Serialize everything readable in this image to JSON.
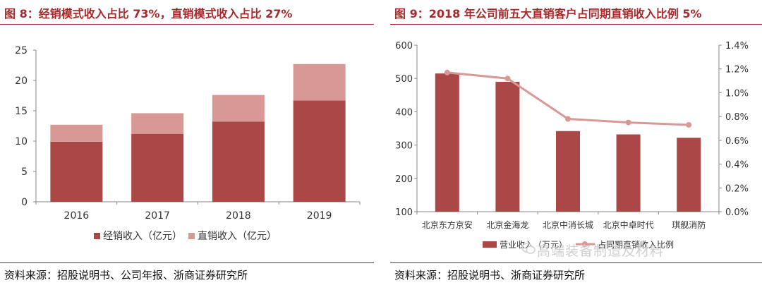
{
  "left": {
    "title": "图 8：经销模式收入占比 73%，直销模式收入占比 27%",
    "source": "资料来源：招股说明书、公司年报、浙商证券研究所"
  },
  "right": {
    "title": "图 9：2018 年公司前五大直销客户占同期直销收入比例 5%",
    "source": "资料来源：招股说明书、浙商证券研究所",
    "watermark": "高端装备制造及材料"
  },
  "chart_data": [
    {
      "type": "bar",
      "stacked": true,
      "categories": [
        "2016",
        "2017",
        "2018",
        "2019"
      ],
      "series": [
        {
          "name": "经销收入（亿元）",
          "values": [
            9.9,
            11.2,
            13.2,
            16.7
          ],
          "color": "#a94846"
        },
        {
          "name": "直销收入（亿元）",
          "values": [
            2.8,
            3.4,
            4.4,
            6.0
          ],
          "color": "#d79896"
        }
      ],
      "ylim": [
        0,
        25
      ],
      "yticks": [
        0,
        5,
        10,
        15,
        20,
        25
      ],
      "legend": "bottom",
      "grid": false
    },
    {
      "type": "bar+line",
      "categories": [
        "北京东方京安",
        "北京金海龙",
        "北京中消长城",
        "北京中卓时代",
        "琪舰消防"
      ],
      "series": [
        {
          "name": "营业收入（万元）",
          "type": "bar",
          "axis": "left",
          "values": [
            515,
            490,
            342,
            332,
            322
          ],
          "color": "#a94846"
        },
        {
          "name": "占同期直销收入比例",
          "type": "line",
          "axis": "right",
          "values": [
            1.17,
            1.12,
            0.78,
            0.75,
            0.73
          ],
          "color": "#d79896"
        }
      ],
      "ylim": [
        100,
        600
      ],
      "yticks": [
        100,
        200,
        300,
        400,
        500,
        600
      ],
      "y2lim": [
        0,
        1.4
      ],
      "y2ticks": [
        "0.0%",
        "0.2%",
        "0.4%",
        "0.6%",
        "0.8%",
        "1.0%",
        "1.2%",
        "1.4%"
      ],
      "legend": "bottom",
      "grid": false
    }
  ]
}
